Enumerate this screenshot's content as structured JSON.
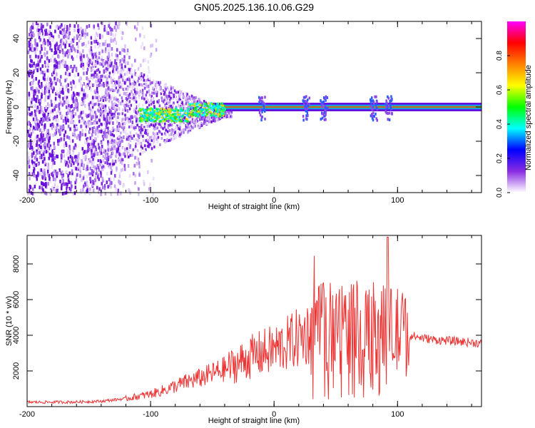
{
  "title": "GN05.2025.136.10.06.G29",
  "chart_data": [
    {
      "type": "heatmap",
      "xlabel": "Height of straight line (km)",
      "ylabel": "Frequency (Hz)",
      "xlim": [
        -200,
        168
      ],
      "ylim": [
        -50,
        50
      ],
      "xticks": [
        -200,
        -100,
        0,
        100
      ],
      "yticks": [
        -40,
        -20,
        0,
        20,
        40
      ],
      "xtick_labels": [
        "-200",
        "-100",
        "0",
        "100"
      ],
      "ytick_labels": [
        "-40",
        "-20",
        "0",
        "20",
        "40"
      ],
      "grid": false,
      "colorbar": {
        "label": "Normalized spectral amplitude",
        "range": [
          0,
          1
        ],
        "ticks": [
          0.0,
          0.2,
          0.4,
          0.6,
          0.8
        ],
        "tick_labels": [
          "0.0",
          "0.2",
          "0.4",
          "0.6",
          "0.8"
        ],
        "colormap": [
          "#ffffff",
          "#8a2be2",
          "#0000ff",
          "#00ffff",
          "#00ff00",
          "#ffff00",
          "#ff8000",
          "#ff0000",
          "#ff00ff"
        ]
      },
      "features": {
        "dominant_frequency_hz": 0,
        "noise_region_x": [
          -200,
          -95
        ],
        "bright_bursts_x": [
          -10,
          25,
          40,
          80,
          92
        ]
      }
    },
    {
      "type": "line",
      "xlabel": "Height of straight line (km)",
      "ylabel": "SNR (10 * v/v)",
      "xlim": [
        -200,
        168
      ],
      "ylim": [
        0,
        9600
      ],
      "xticks": [
        -200,
        -100,
        0,
        100
      ],
      "yticks": [
        2000,
        4000,
        6000,
        8000
      ],
      "xtick_labels": [
        "-200",
        "-100",
        "0",
        "100"
      ],
      "ytick_labels": [
        "2000",
        "4000",
        "6000",
        "8000"
      ],
      "grid": false,
      "series": [
        {
          "color": "#ee3333",
          "x": [
            -200,
            -180,
            -160,
            -140,
            -120,
            -100,
            -90,
            -80,
            -70,
            -60,
            -50,
            -40,
            -30,
            -20,
            -10,
            0,
            10,
            20,
            30,
            40,
            50,
            60,
            70,
            80,
            90,
            95,
            100,
            105,
            110,
            120,
            130,
            140,
            150,
            160,
            168
          ],
          "y": [
            250,
            250,
            260,
            300,
            450,
            700,
            900,
            1150,
            1400,
            1600,
            1850,
            2100,
            2400,
            2750,
            3000,
            3200,
            3500,
            3850,
            4200,
            4350,
            4450,
            4500,
            4450,
            4400,
            4300,
            4250,
            4200,
            4150,
            4000,
            3850,
            3750,
            3700,
            3650,
            3600,
            3550
          ]
        }
      ]
    }
  ]
}
